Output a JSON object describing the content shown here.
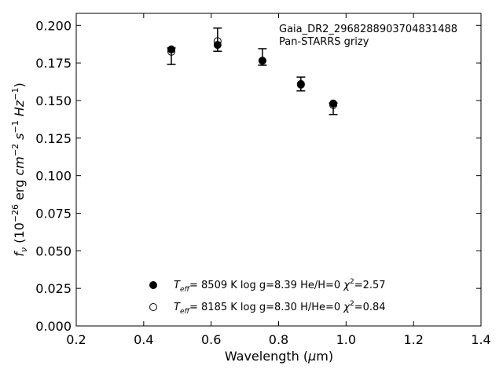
{
  "chart_data": {
    "type": "scatter",
    "title": "",
    "annotation": [
      "Gaia_DR2_2968288903704831488",
      "Pan-STARRS grizy"
    ],
    "xlabel": {
      "pre": "Wavelength (",
      "mu": "μ",
      "post": "m)"
    },
    "ylabel": {
      "f": "f",
      "nu": "ν",
      "open": " (10",
      "exp1": "−26",
      "erg": " erg ",
      "cm": "cm",
      "exp2": "−2",
      "s": " s",
      "exp3": "−1",
      "hz": " Hz",
      "exp4": "−1",
      "close": ")"
    },
    "xlim": [
      0.2,
      1.4
    ],
    "ylim": [
      0.0,
      0.208
    ],
    "xticks": [
      0.2,
      0.4,
      0.6,
      0.8,
      1.0,
      1.2,
      1.4
    ],
    "xtick_labels": [
      "0.2",
      "0.4",
      "0.6",
      "0.8",
      "1.0",
      "1.2",
      "1.4"
    ],
    "yticks": [
      0.0,
      0.025,
      0.05,
      0.075,
      0.1,
      0.125,
      0.15,
      0.175,
      0.2
    ],
    "ytick_labels": [
      "0.000",
      "0.025",
      "0.050",
      "0.075",
      "0.100",
      "0.125",
      "0.150",
      "0.175",
      "0.200"
    ],
    "grid": false,
    "legend_position": "bottom-center",
    "observed": {
      "x": [
        0.482,
        0.619,
        0.752,
        0.866,
        0.962
      ],
      "y": [
        0.1795,
        0.1905,
        0.179,
        0.161,
        0.1445
      ],
      "yerr": [
        0.0055,
        0.0077,
        0.0055,
        0.0046,
        0.0038
      ]
    },
    "series": [
      {
        "name": "fit1",
        "marker": "filled",
        "label": {
          "t": "T",
          "eff": "eff",
          "rest": "=  8509 K  log g=8.39  He/H=0  ",
          "chi": "χ",
          "two": "2",
          "val": "=2.57"
        },
        "x": [
          0.482,
          0.619,
          0.752,
          0.866,
          0.962
        ],
        "y": [
          0.184,
          0.187,
          0.1765,
          0.1605,
          0.148
        ]
      },
      {
        "name": "fit2",
        "marker": "open",
        "label": {
          "t": "T",
          "eff": "eff",
          "rest": "=  8185 K  log g=8.30  H/He=0  ",
          "chi": "χ",
          "two": "2",
          "val": "=0.84"
        },
        "x": [
          0.482,
          0.619,
          0.752,
          0.866,
          0.962
        ],
        "y": [
          0.1825,
          0.1895,
          0.1765,
          0.161,
          0.147
        ]
      }
    ]
  }
}
